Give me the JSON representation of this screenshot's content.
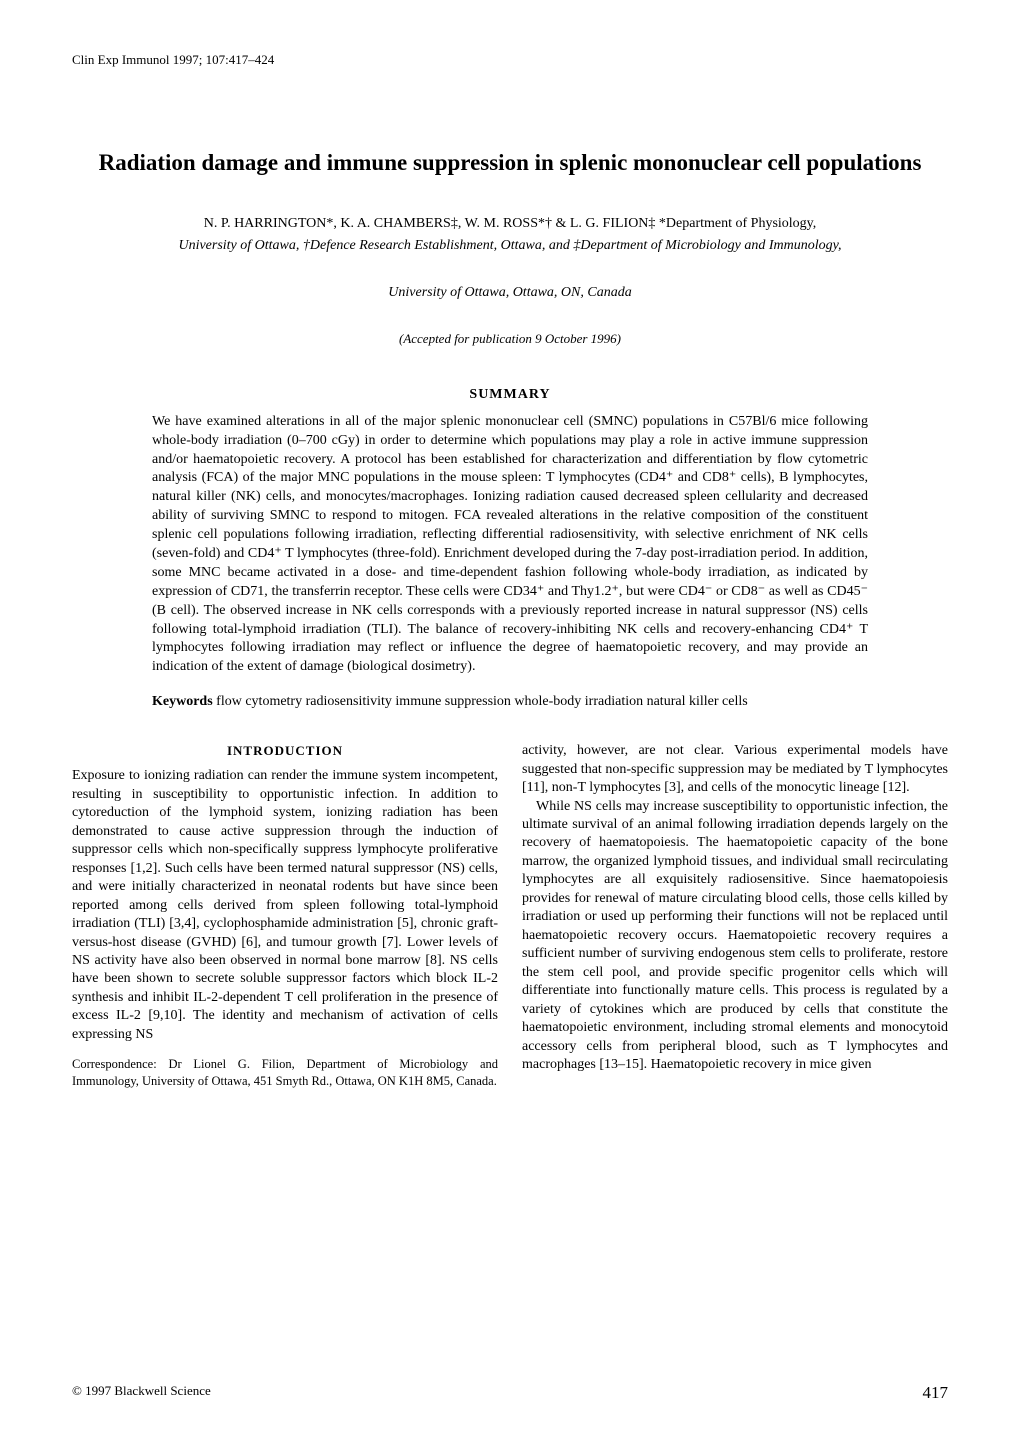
{
  "journal_header": "Clin Exp Immunol 1997; 107:417–424",
  "title": "Radiation damage and immune suppression in splenic mononuclear cell populations",
  "authors_line": "N. P. HARRINGTON*, K. A. CHAMBERS‡, W. M. ROSS*† & L. G. FILION‡ *Department of Physiology,",
  "affiliations_line1": "University of Ottawa, †Defence Research Establishment, Ottawa, and ‡Department of Microbiology and Immunology,",
  "affiliations_line2": "University of Ottawa, Ottawa, ON, Canada",
  "accepted": "(Accepted for publication 9 October 1996)",
  "summary_heading": "SUMMARY",
  "abstract": "We have examined alterations in all of the major splenic mononuclear cell (SMNC) populations in C57Bl/6 mice following whole-body irradiation (0–700 cGy) in order to determine which populations may play a role in active immune suppression and/or haematopoietic recovery. A protocol has been established for characterization and differentiation by flow cytometric analysis (FCA) of the major MNC populations in the mouse spleen: T lymphocytes (CD4⁺ and CD8⁺ cells), B lymphocytes, natural killer (NK) cells, and monocytes/macrophages. Ionizing radiation caused decreased spleen cellularity and decreased ability of surviving SMNC to respond to mitogen. FCA revealed alterations in the relative composition of the constituent splenic cell populations following irradiation, reflecting differential radiosensitivity, with selective enrichment of NK cells (seven-fold) and CD4⁺ T lymphocytes (three-fold). Enrichment developed during the 7-day post-irradiation period. In addition, some MNC became activated in a dose- and time-dependent fashion following whole-body irradiation, as indicated by expression of CD71, the transferrin receptor. These cells were CD34⁺ and Thy1.2⁺, but were CD4⁻ or CD8⁻ as well as CD45⁻ (B cell). The observed increase in NK cells corresponds with a previously reported increase in natural suppressor (NS) cells following total-lymphoid irradiation (TLI). The balance of recovery-inhibiting NK cells and recovery-enhancing CD4⁺ T lymphocytes following irradiation may reflect or influence the degree of haematopoietic recovery, and may provide an indication of the extent of damage (biological dosimetry).",
  "keywords_label": "Keywords",
  "keywords_text": "   flow cytometry   radiosensitivity   immune suppression   whole-body irradiation   natural killer cells",
  "intro_heading": "INTRODUCTION",
  "intro_para1": "Exposure to ionizing radiation can render the immune system incompetent, resulting in susceptibility to opportunistic infection. In addition to cytoreduction of the lymphoid system, ionizing radiation has been demonstrated to cause active suppression through the induction of suppressor cells which non-specifically suppress lymphocyte proliferative responses [1,2]. Such cells have been termed natural suppressor (NS) cells, and were initially characterized in neonatal rodents but have since been reported among cells derived from spleen following total-lymphoid irradiation (TLI) [3,4], cyclophosphamide administration [5], chronic graft-versus-host disease (GVHD) [6], and tumour growth [7]. Lower levels of NS activity have also been observed in normal bone marrow [8]. NS cells have been shown to secrete soluble suppressor factors which block IL-2 synthesis and inhibit IL-2-dependent T cell proliferation in the presence of excess IL-2 [9,10]. The identity and mechanism of activation of cells expressing NS",
  "col2_para1": "activity, however, are not clear. Various experimental models have suggested that non-specific suppression may be mediated by T lymphocytes [11], non-T lymphocytes [3], and cells of the monocytic lineage [12].",
  "col2_para2": "While NS cells may increase susceptibility to opportunistic infection, the ultimate survival of an animal following irradiation depends largely on the recovery of haematopoiesis. The haematopoietic capacity of the bone marrow, the organized lymphoid tissues, and individual small recirculating lymphocytes are all exquisitely radiosensitive. Since haematopoiesis provides for renewal of mature circulating blood cells, those cells killed by irradiation or used up performing their functions will not be replaced until haematopoietic recovery occurs. Haematopoietic recovery requires a sufficient number of surviving endogenous stem cells to proliferate, restore the stem cell pool, and provide specific progenitor cells which will differentiate into functionally mature cells. This process is regulated by a variety of cytokines which are produced by cells that constitute the haematopoietic environment, including stromal elements and monocytoid accessory cells from peripheral blood, such as T lymphocytes and macrophages [13–15]. Haematopoietic recovery in mice given",
  "correspondence": "Correspondence: Dr Lionel G. Filion, Department of Microbiology and Immunology, University of Ottawa, 451 Smyth Rd., Ottawa, ON K1H 8M5, Canada.",
  "copyright": "© 1997 Blackwell Science",
  "page_number": "417"
}
